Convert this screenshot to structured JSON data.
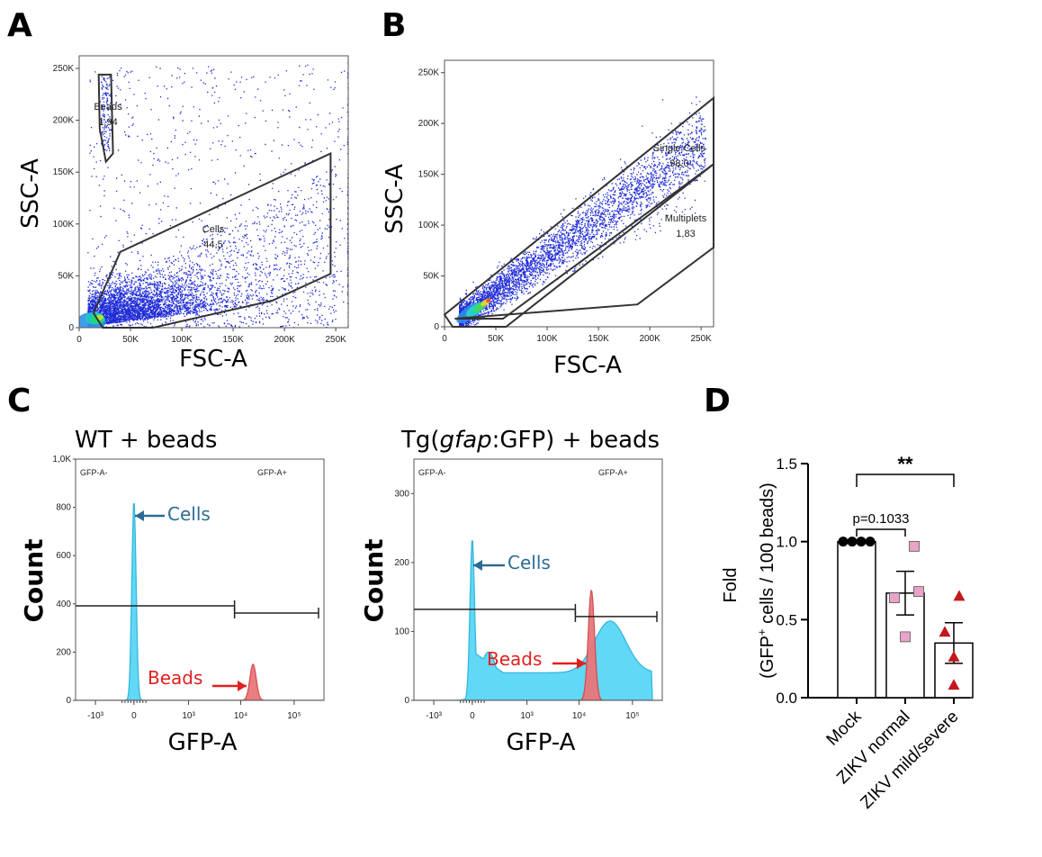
{
  "panels": {
    "a": "A",
    "b": "B",
    "c": "C",
    "d": "D"
  },
  "chart_data": [
    {
      "type": "scatter",
      "panel": "A",
      "xlabel": "FSC-A",
      "ylabel": "SSC-A",
      "xlim": [
        0,
        262144
      ],
      "ylim": [
        0,
        262144
      ],
      "xticks": [
        "0",
        "50K",
        "100K",
        "150K",
        "200K",
        "250K"
      ],
      "yticks": [
        "0",
        "50K",
        "100K",
        "150K",
        "200K",
        "250K"
      ],
      "gates": [
        {
          "name": "Beads",
          "value": "1,94",
          "vertices": [
            [
              19000,
              244000
            ],
            [
              31000,
              244000
            ],
            [
              33000,
              168000
            ],
            [
              26000,
              160000
            ],
            [
              20000,
              192000
            ]
          ]
        },
        {
          "name": "Cells",
          "value": "44,5",
          "vertices": [
            [
              23000,
              0
            ],
            [
              72000,
              0
            ],
            [
              188000,
              26000
            ],
            [
              245000,
              52000
            ],
            [
              245000,
              168000
            ],
            [
              40000,
              73000
            ],
            [
              14000,
              14000
            ]
          ]
        }
      ]
    },
    {
      "type": "scatter",
      "panel": "B",
      "xlabel": "FSC-A",
      "ylabel": "SSC-A",
      "xlim": [
        0,
        262144
      ],
      "ylim": [
        0,
        262144
      ],
      "xticks": [
        "0",
        "50K",
        "100K",
        "150K",
        "200K",
        "250K"
      ],
      "yticks": [
        "0",
        "50K",
        "100K",
        "150K",
        "200K",
        "250K"
      ],
      "gates": [
        {
          "name": "Single Cells",
          "value": "98,0",
          "vertices": [
            [
              0,
              12000
            ],
            [
              8000,
              0
            ],
            [
              60000,
              0
            ],
            [
              262144,
              160000
            ],
            [
              262144,
              225000
            ]
          ]
        },
        {
          "name": "Multiplets",
          "value": "1,83",
          "vertices": [
            [
              10000,
              8000
            ],
            [
              57000,
              8000
            ],
            [
              262144,
              160000
            ],
            [
              262144,
              78000
            ],
            [
              188000,
              22000
            ]
          ]
        }
      ]
    },
    {
      "type": "area",
      "panel": "C",
      "title": "WT + beads",
      "xlabel": "GFP-A",
      "ylabel": "Count",
      "ylim": [
        0,
        1000
      ],
      "yticks": [
        "0",
        "200",
        "400",
        "600",
        "800",
        "1,0K"
      ],
      "xticks": [
        "-10³",
        "0",
        "10³",
        "10⁴",
        "10⁵"
      ],
      "gates": [
        "GFP-A-",
        "GFP-A+"
      ],
      "annotations": [
        "Cells",
        "Beads"
      ],
      "series": [
        {
          "name": "Cells",
          "color": "#59d6f5",
          "peak_x": 0,
          "peak_count": 830
        },
        {
          "name": "Beads",
          "color": "#e8777a",
          "peak_x": 17000,
          "peak_count": 150
        }
      ]
    },
    {
      "type": "area",
      "panel": "C",
      "title_parts": [
        "Tg(",
        "gfap",
        ":GFP) + beads"
      ],
      "xlabel": "GFP-A",
      "ylabel": "Count",
      "ylim": [
        0,
        350
      ],
      "yticks": [
        "0",
        "100",
        "200",
        "300"
      ],
      "xticks": [
        "-10³",
        "0",
        "10³",
        "10⁴",
        "10⁵"
      ],
      "gates": [
        "GFP-A-",
        "GFP-A+"
      ],
      "annotations": [
        "Cells",
        "Beads"
      ],
      "series": [
        {
          "name": "Cells",
          "color": "#59d6f5",
          "peak_x": 0,
          "peak_count": 235
        },
        {
          "name": "Beads",
          "color": "#e8777a",
          "peak_x": 17000,
          "peak_count": 160
        }
      ]
    },
    {
      "type": "bar",
      "panel": "D",
      "ylabel_parts": [
        "Fold",
        "(GFP",
        "+",
        " cells / 100 beads)"
      ],
      "ylim": [
        0,
        1.5
      ],
      "yticks": [
        "0.0",
        "0.5",
        "1.0",
        "1.5"
      ],
      "categories": [
        "Mock",
        "ZIKV normal",
        "ZIKV mild/severe"
      ],
      "values": [
        1.0,
        0.67,
        0.35
      ],
      "errors": [
        0.0,
        0.14,
        0.13
      ],
      "points": [
        [
          1.0,
          1.0,
          1.0,
          1.0
        ],
        [
          0.97,
          0.68,
          0.64,
          0.39
        ],
        [
          0.65,
          0.42,
          0.26,
          0.08
        ]
      ],
      "markers": [
        {
          "shape": "circle",
          "color": "#000000"
        },
        {
          "shape": "square",
          "color": "#e9a3c8"
        },
        {
          "shape": "triangle",
          "color": "#c3191e"
        }
      ],
      "significance": [
        {
          "from": 0,
          "to": 1,
          "label": "p=0.1033"
        },
        {
          "from": 0,
          "to": 2,
          "label": "**"
        }
      ]
    }
  ]
}
